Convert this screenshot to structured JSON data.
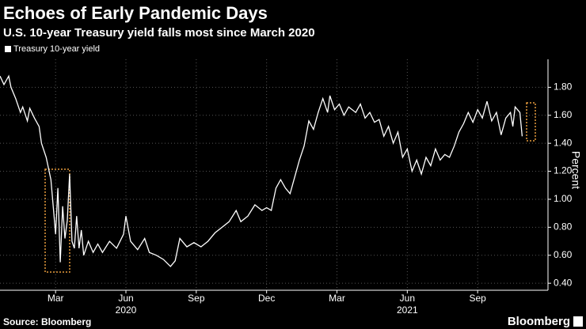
{
  "chart_data": {
    "type": "line",
    "title": "Echoes of Early Pandemic Days",
    "subtitle": "U.S. 10-year Treasury yield falls most since March 2020",
    "y_label": "Percent",
    "source": "Source: Bloomberg",
    "brand": "Bloomberg",
    "grid": true,
    "xlim": [
      -0.37,
      23.0
    ],
    "xticks": [
      {
        "value": 2,
        "label": "Mar"
      },
      {
        "value": 5,
        "label": "Jun"
      },
      {
        "value": 8,
        "label": "Sep"
      },
      {
        "value": 11,
        "label": "Dec"
      },
      {
        "value": 14,
        "label": "Mar"
      },
      {
        "value": 17,
        "label": "Jun"
      },
      {
        "value": 20,
        "label": "Sep"
      }
    ],
    "xgroups": [
      {
        "value": 5,
        "label": "2020"
      },
      {
        "value": 17,
        "label": "2021"
      }
    ],
    "ylim": [
      0.35,
      2.0
    ],
    "yticks": [
      {
        "value": 0.4,
        "label": "0.40"
      },
      {
        "value": 0.6,
        "label": "0.60"
      },
      {
        "value": 0.8,
        "label": "0.80"
      },
      {
        "value": 1.0,
        "label": "1.00"
      },
      {
        "value": 1.2,
        "label": "1.20"
      },
      {
        "value": 1.4,
        "label": "1.40"
      },
      {
        "value": 1.6,
        "label": "1.60"
      },
      {
        "value": 1.8,
        "label": "1.80"
      }
    ],
    "series": [
      {
        "name": "Treasury 10-year yield",
        "color": "#ffffff",
        "x": [
          -0.37,
          -0.2,
          0,
          0.1,
          0.3,
          0.5,
          0.6,
          0.8,
          0.9,
          1.1,
          1.3,
          1.4,
          1.6,
          1.8,
          1.9,
          2.0,
          2.1,
          2.2,
          2.3,
          2.4,
          2.5,
          2.6,
          2.7,
          2.8,
          2.9,
          3.0,
          3.1,
          3.2,
          3.4,
          3.6,
          3.8,
          4.0,
          4.3,
          4.6,
          4.9,
          5.0,
          5.2,
          5.5,
          5.8,
          6.0,
          6.3,
          6.6,
          6.9,
          7.1,
          7.3,
          7.6,
          7.9,
          8.2,
          8.5,
          8.8,
          9.1,
          9.4,
          9.7,
          9.9,
          10.2,
          10.5,
          10.8,
          11.0,
          11.2,
          11.4,
          11.6,
          11.8,
          12.0,
          12.2,
          12.4,
          12.6,
          12.8,
          13.0,
          13.2,
          13.4,
          13.6,
          13.7,
          13.9,
          14.1,
          14.3,
          14.5,
          14.8,
          15.0,
          15.2,
          15.4,
          15.6,
          15.8,
          16.0,
          16.2,
          16.4,
          16.6,
          16.8,
          17.0,
          17.2,
          17.4,
          17.6,
          17.8,
          18.0,
          18.2,
          18.4,
          18.6,
          18.8,
          19.0,
          19.2,
          19.4,
          19.6,
          19.8,
          20.0,
          20.2,
          20.4,
          20.6,
          20.8,
          21.0,
          21.2,
          21.4,
          21.5,
          21.6,
          21.8,
          21.9
        ],
        "values": [
          1.88,
          1.82,
          1.88,
          1.8,
          1.72,
          1.62,
          1.66,
          1.56,
          1.65,
          1.58,
          1.52,
          1.4,
          1.3,
          1.14,
          0.95,
          0.75,
          1.08,
          0.55,
          0.95,
          0.72,
          0.85,
          1.18,
          0.7,
          0.65,
          0.88,
          0.65,
          0.78,
          0.6,
          0.7,
          0.62,
          0.68,
          0.62,
          0.7,
          0.65,
          0.75,
          0.88,
          0.7,
          0.64,
          0.72,
          0.62,
          0.6,
          0.57,
          0.52,
          0.56,
          0.72,
          0.66,
          0.69,
          0.66,
          0.7,
          0.76,
          0.8,
          0.84,
          0.92,
          0.84,
          0.88,
          0.96,
          0.92,
          0.94,
          0.92,
          1.08,
          1.14,
          1.08,
          1.04,
          1.16,
          1.28,
          1.38,
          1.56,
          1.5,
          1.62,
          1.72,
          1.62,
          1.74,
          1.64,
          1.68,
          1.6,
          1.66,
          1.62,
          1.68,
          1.58,
          1.62,
          1.55,
          1.57,
          1.45,
          1.52,
          1.4,
          1.48,
          1.3,
          1.36,
          1.2,
          1.28,
          1.18,
          1.3,
          1.24,
          1.36,
          1.28,
          1.32,
          1.3,
          1.38,
          1.48,
          1.54,
          1.62,
          1.55,
          1.64,
          1.58,
          1.7,
          1.56,
          1.62,
          1.46,
          1.58,
          1.62,
          1.52,
          1.66,
          1.62,
          1.45
        ]
      }
    ]
  }
}
